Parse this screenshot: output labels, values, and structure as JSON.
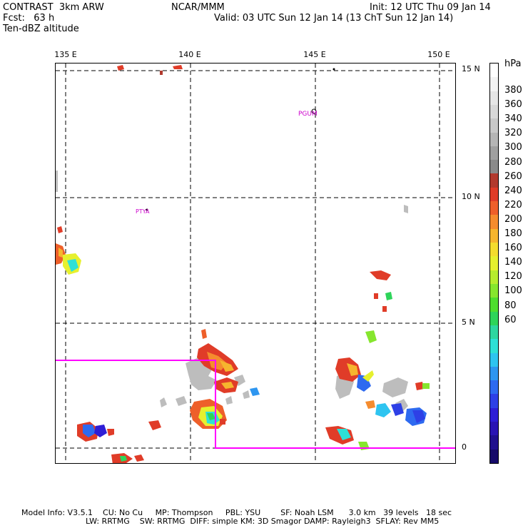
{
  "header": {
    "model": "CONTRAST  3km ARW",
    "forecast": "Fcst:   63 h",
    "field": "Ten-dBZ altitude",
    "center": "NCAR/MMM",
    "init": "Init: 12 UTC Thu 09 Jan 14",
    "valid": "Valid: 03 UTC Sun 12 Jan 14 (13 ChT Sun 12 Jan 14)"
  },
  "map": {
    "lon_labels": [
      "135 E",
      "140 E",
      "145 E",
      "150 E"
    ],
    "lat_labels": [
      "15 N",
      "10 N",
      "5 N",
      "0"
    ],
    "stations": [
      "PGUM",
      "PTYA"
    ]
  },
  "colorbar": {
    "unit": "hPa",
    "labels": [
      "380",
      "360",
      "340",
      "320",
      "300",
      "280",
      "260",
      "240",
      "220",
      "200",
      "180",
      "160",
      "140",
      "120",
      "100",
      "80",
      "60"
    ],
    "colors": [
      "#ffffff",
      "#f3f3f3",
      "#e6e6e6",
      "#d8d8d8",
      "#c8c8c8",
      "#b5b5b5",
      "#a0a0a0",
      "#8a8a8a",
      "#b23a2e",
      "#e03c28",
      "#ee5f2a",
      "#f58c2e",
      "#f6b52e",
      "#f4dc2e",
      "#e6f02e",
      "#b6ec2e",
      "#86e62e",
      "#4ede2e",
      "#2ed45a",
      "#2ed6a0",
      "#2ee0d6",
      "#2ec4f0",
      "#2e96f0",
      "#2e6af0",
      "#2e40e6",
      "#2e1ed6",
      "#2a14b4",
      "#20108e",
      "#160a6a"
    ]
  },
  "footer": {
    "line1": "Model Info: V3.5.1    CU: No Cu     MP: Thompson     PBL: YSU        SF: Noah LSM      3.0 km   39 levels   18 sec",
    "line2": "LW: RRTMG    SW: RRTMG  DIFF: simple KM: 3D Smagor DAMP: Rayleigh3  SFLAY: Rev MM5"
  }
}
